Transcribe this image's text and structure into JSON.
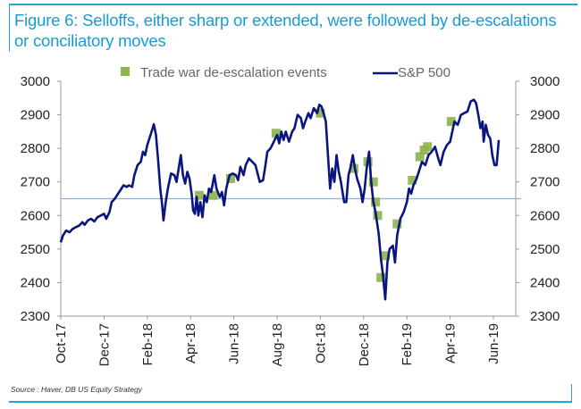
{
  "figure": {
    "title": "Figure 6: Selloffs, either sharp or extended, were followed by de-escalations or conciliatory moves",
    "source": "Source : Haver, DB US Equity Strategy"
  },
  "colors": {
    "accent": "#29a3d6",
    "title": "#1a9ad6",
    "series_line": "#0a1580",
    "marker": "#8db34a",
    "reference_line": "#8fb0cf",
    "axis": "#9a9a9a"
  },
  "chart_data": {
    "type": "line",
    "title": "Figure 6: Selloffs, either sharp or extended, were followed by de-escalations or conciliatory moves",
    "xlabel": "",
    "ylabel": "",
    "ylim": [
      2300,
      3000
    ],
    "yticks": [
      2300,
      2400,
      2500,
      2600,
      2700,
      2800,
      2900,
      3000
    ],
    "ytick_labels": [
      "2300",
      "2400",
      "2500",
      "2600",
      "2700",
      "2800",
      "2900",
      "3000"
    ],
    "y2ticks": [
      2300,
      2400,
      2500,
      2600,
      2700,
      2800,
      2900,
      3000
    ],
    "y2tick_labels": [
      "2300",
      "2400",
      "2500",
      "2600",
      "2700",
      "2800",
      "2900",
      "3000"
    ],
    "x_unit": "months since Oct-2017",
    "xlim": [
      0,
      20.6
    ],
    "xticks": [
      0,
      2,
      4,
      6,
      8,
      10,
      12,
      14,
      16,
      18,
      20
    ],
    "xtick_labels": [
      "Oct-17",
      "Dec-17",
      "Feb-18",
      "Apr-18",
      "Jun-18",
      "Aug-18",
      "Oct-18",
      "Dec-18",
      "Feb-19",
      "Apr-19",
      "Jun-19"
    ],
    "grid": false,
    "legend": {
      "placement": "top-center",
      "entries": [
        "Trade war de-escalation events",
        "S&P 500"
      ]
    },
    "reference_line": {
      "y": 2650
    },
    "series": [
      {
        "name": "S&P 500",
        "kind": "line",
        "points": [
          [
            0.0,
            2520
          ],
          [
            0.1,
            2540
          ],
          [
            0.25,
            2555
          ],
          [
            0.4,
            2550
          ],
          [
            0.55,
            2560
          ],
          [
            0.7,
            2565
          ],
          [
            0.85,
            2570
          ],
          [
            1.0,
            2580
          ],
          [
            1.1,
            2572
          ],
          [
            1.25,
            2585
          ],
          [
            1.4,
            2590
          ],
          [
            1.55,
            2582
          ],
          [
            1.7,
            2595
          ],
          [
            1.85,
            2600
          ],
          [
            2.0,
            2605
          ],
          [
            2.1,
            2590
          ],
          [
            2.25,
            2610
          ],
          [
            2.35,
            2640
          ],
          [
            2.5,
            2650
          ],
          [
            2.6,
            2660
          ],
          [
            2.75,
            2675
          ],
          [
            2.9,
            2690
          ],
          [
            3.05,
            2685
          ],
          [
            3.15,
            2690
          ],
          [
            3.3,
            2685
          ],
          [
            3.4,
            2720
          ],
          [
            3.55,
            2750
          ],
          [
            3.7,
            2760
          ],
          [
            3.8,
            2790
          ],
          [
            3.9,
            2780
          ],
          [
            4.0,
            2810
          ],
          [
            4.1,
            2830
          ],
          [
            4.2,
            2850
          ],
          [
            4.3,
            2872
          ],
          [
            4.4,
            2840
          ],
          [
            4.5,
            2765
          ],
          [
            4.6,
            2680
          ],
          [
            4.68,
            2635
          ],
          [
            4.75,
            2585
          ],
          [
            4.85,
            2640
          ],
          [
            4.95,
            2680
          ],
          [
            5.1,
            2725
          ],
          [
            5.25,
            2720
          ],
          [
            5.35,
            2700
          ],
          [
            5.45,
            2740
          ],
          [
            5.55,
            2780
          ],
          [
            5.65,
            2720
          ],
          [
            5.75,
            2695
          ],
          [
            5.85,
            2730
          ],
          [
            5.95,
            2710
          ],
          [
            6.05,
            2665
          ],
          [
            6.12,
            2615
          ],
          [
            6.2,
            2605
          ],
          [
            6.28,
            2655
          ],
          [
            6.36,
            2600
          ],
          [
            6.45,
            2640
          ],
          [
            6.55,
            2595
          ],
          [
            6.65,
            2660
          ],
          [
            6.75,
            2640
          ],
          [
            6.85,
            2680
          ],
          [
            6.95,
            2670
          ],
          [
            7.1,
            2720
          ],
          [
            7.2,
            2680
          ],
          [
            7.35,
            2655
          ],
          [
            7.45,
            2670
          ],
          [
            7.55,
            2630
          ],
          [
            7.65,
            2680
          ],
          [
            7.8,
            2720
          ],
          [
            7.95,
            2725
          ],
          [
            8.1,
            2720
          ],
          [
            8.2,
            2705
          ],
          [
            8.3,
            2745
          ],
          [
            8.45,
            2720
          ],
          [
            8.55,
            2750
          ],
          [
            8.7,
            2770
          ],
          [
            8.85,
            2760
          ],
          [
            9.0,
            2750
          ],
          [
            9.1,
            2725
          ],
          [
            9.2,
            2700
          ],
          [
            9.35,
            2705
          ],
          [
            9.45,
            2745
          ],
          [
            9.55,
            2790
          ],
          [
            9.7,
            2800
          ],
          [
            9.85,
            2820
          ],
          [
            10.0,
            2840
          ],
          [
            10.1,
            2815
          ],
          [
            10.2,
            2850
          ],
          [
            10.3,
            2825
          ],
          [
            10.4,
            2850
          ],
          [
            10.55,
            2820
          ],
          [
            10.7,
            2850
          ],
          [
            10.8,
            2860
          ],
          [
            10.95,
            2900
          ],
          [
            11.1,
            2890
          ],
          [
            11.2,
            2860
          ],
          [
            11.3,
            2880
          ],
          [
            11.45,
            2905
          ],
          [
            11.55,
            2890
          ],
          [
            11.7,
            2920
          ],
          [
            11.85,
            2905
          ],
          [
            11.95,
            2930
          ],
          [
            12.05,
            2925
          ],
          [
            12.15,
            2905
          ],
          [
            12.25,
            2880
          ],
          [
            12.35,
            2780
          ],
          [
            12.45,
            2680
          ],
          [
            12.55,
            2740
          ],
          [
            12.65,
            2700
          ],
          [
            12.75,
            2780
          ],
          [
            12.85,
            2730
          ],
          [
            12.95,
            2700
          ],
          [
            13.1,
            2640
          ],
          [
            13.2,
            2640
          ],
          [
            13.3,
            2720
          ],
          [
            13.4,
            2745
          ],
          [
            13.5,
            2780
          ],
          [
            13.6,
            2740
          ],
          [
            13.7,
            2710
          ],
          [
            13.85,
            2680
          ],
          [
            13.95,
            2640
          ],
          [
            14.05,
            2680
          ],
          [
            14.15,
            2745
          ],
          [
            14.25,
            2790
          ],
          [
            14.35,
            2700
          ],
          [
            14.45,
            2640
          ],
          [
            14.55,
            2610
          ],
          [
            14.7,
            2545
          ],
          [
            14.8,
            2470
          ],
          [
            14.9,
            2420
          ],
          [
            15.0,
            2350
          ],
          [
            15.1,
            2460
          ],
          [
            15.2,
            2500
          ],
          [
            15.35,
            2510
          ],
          [
            15.45,
            2460
          ],
          [
            15.55,
            2540
          ],
          [
            15.7,
            2590
          ],
          [
            15.85,
            2610
          ],
          [
            16.0,
            2640
          ],
          [
            16.1,
            2680
          ],
          [
            16.2,
            2665
          ],
          [
            16.3,
            2690
          ],
          [
            16.45,
            2710
          ],
          [
            16.6,
            2740
          ],
          [
            16.7,
            2760
          ],
          [
            16.85,
            2750
          ],
          [
            17.0,
            2780
          ],
          [
            17.15,
            2790
          ],
          [
            17.3,
            2805
          ],
          [
            17.45,
            2770
          ],
          [
            17.55,
            2750
          ],
          [
            17.7,
            2790
          ],
          [
            17.85,
            2810
          ],
          [
            18.0,
            2820
          ],
          [
            18.1,
            2850
          ],
          [
            18.2,
            2880
          ],
          [
            18.35,
            2870
          ],
          [
            18.5,
            2900
          ],
          [
            18.65,
            2905
          ],
          [
            18.8,
            2910
          ],
          [
            18.95,
            2940
          ],
          [
            19.1,
            2945
          ],
          [
            19.2,
            2935
          ],
          [
            19.3,
            2900
          ],
          [
            19.4,
            2860
          ],
          [
            19.5,
            2880
          ],
          [
            19.55,
            2820
          ],
          [
            19.65,
            2870
          ],
          [
            19.75,
            2840
          ],
          [
            19.85,
            2830
          ],
          [
            19.95,
            2780
          ],
          [
            20.05,
            2750
          ],
          [
            20.15,
            2750
          ],
          [
            20.25,
            2825
          ]
        ]
      },
      {
        "name": "Trade war de-escalation events",
        "kind": "marker",
        "points": [
          [
            6.4,
            2660
          ],
          [
            7.05,
            2660
          ],
          [
            7.85,
            2710
          ],
          [
            9.95,
            2845
          ],
          [
            12.0,
            2905
          ],
          [
            13.55,
            2740
          ],
          [
            14.2,
            2760
          ],
          [
            14.45,
            2700
          ],
          [
            14.55,
            2640
          ],
          [
            14.65,
            2600
          ],
          [
            14.8,
            2415
          ],
          [
            15.0,
            2480
          ],
          [
            15.55,
            2575
          ],
          [
            16.25,
            2705
          ],
          [
            16.6,
            2775
          ],
          [
            16.8,
            2795
          ],
          [
            16.95,
            2805
          ],
          [
            18.05,
            2880
          ]
        ]
      }
    ]
  }
}
